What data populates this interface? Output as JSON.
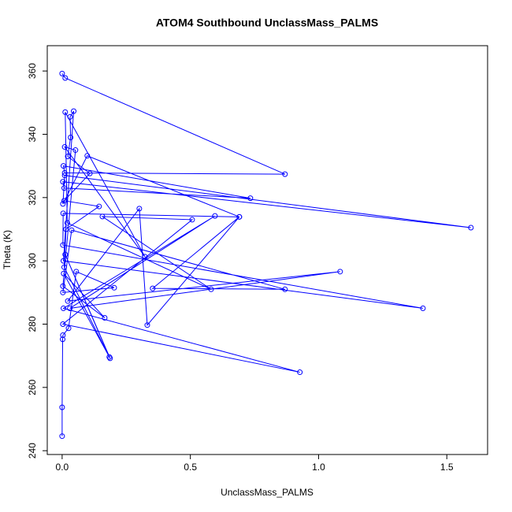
{
  "chart_data": {
    "type": "line",
    "title": "ATOM4 Southbound UnclassMass_PALMS",
    "x_label": "UnclassMass_PALMS",
    "y_label": "Theta (K)",
    "color": "#0000ff",
    "x": [
      0.0,
      0.012,
      0.869,
      0.01,
      0.005,
      0.734,
      0.008,
      0.003,
      1.594,
      0.01,
      0.003,
      0.098,
      0.691,
      0.004,
      0.003,
      1.407,
      0.005,
      0.045,
      0.031,
      0.033,
      0.022,
      0.108,
      0.008,
      0.144,
      0.015,
      0.008,
      0.184,
      0.012,
      0.187,
      0.006,
      0.166,
      0.003,
      0.052,
      0.01,
      0.323,
      0.012,
      0.02,
      0.581,
      0.157,
      0.507,
      0.003,
      0.927,
      0.005,
      0.596,
      0.03,
      1.084,
      0.022,
      0.301,
      0.332,
      0.691,
      0.353,
      0.869,
      0.037,
      0.003,
      0.203,
      0.055,
      0.025,
      0.003,
      0.002,
      0.0,
      0.0
    ],
    "values": [
      359.2,
      357.8,
      327.4,
      327.8,
      330,
      319.8,
      323,
      325,
      310.5,
      327,
      318,
      333.2,
      313.9,
      315,
      305,
      285,
      300,
      347.3,
      345.5,
      339,
      333,
      327.6,
      319,
      317.2,
      310,
      298,
      269.6,
      302,
      269.2,
      296,
      282,
      292,
      335,
      336,
      301.3,
      347,
      312,
      291,
      314,
      313,
      280,
      264.8,
      285,
      314.2,
      285,
      296.6,
      287.3,
      316.5,
      279.7,
      313.9,
      291.3,
      291,
      309.7,
      290,
      291.5,
      296.6,
      278.7,
      276.5,
      275.2,
      253.7,
      244.6
    ],
    "xlim": [
      -0.058,
      1.659
    ],
    "ylim": [
      238.8,
      368
    ],
    "xticks": [
      {
        "value": 0,
        "label": "0.0"
      },
      0.5,
      {
        "value": 1,
        "label": "1.0"
      },
      1.5
    ],
    "yticks": [
      240,
      260,
      280,
      300,
      320,
      340,
      360
    ]
  }
}
